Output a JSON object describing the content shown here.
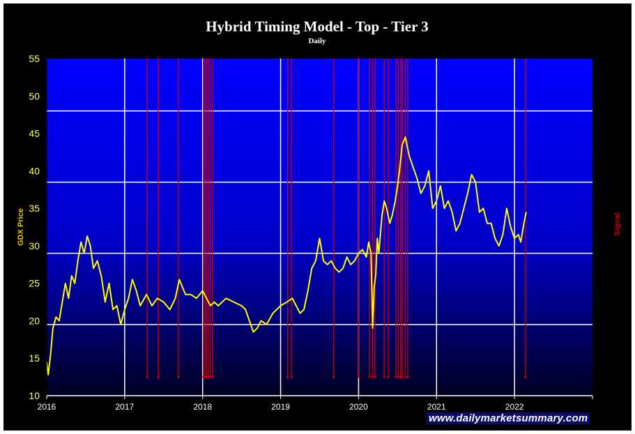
{
  "chart_data": {
    "type": "line",
    "title": "Hybrid Timing Model - Top - Tier 3",
    "subtitle": "Daily",
    "ylabel": "GDX Price",
    "y2label": "Signal",
    "ylim": [
      10,
      55
    ],
    "yticks": [
      "55",
      "50",
      "45",
      "40",
      "35",
      "30",
      "25",
      "20",
      "15",
      "10"
    ],
    "xlim": [
      2016.0,
      2023.0
    ],
    "xticks": [
      "2016",
      "2017",
      "2018",
      "2019",
      "2020",
      "2021",
      "2022"
    ],
    "grid": true,
    "colors": {
      "plot_top": "#0000ff",
      "plot_bottom": "#000022",
      "price_line": "#ffff00",
      "signal_line": "#cc0000",
      "grid": "#ffffff",
      "title": "#ffffff",
      "ylabel": "#e8c800",
      "y2label": "#cc0000"
    },
    "price_series": {
      "x": [
        2016.0,
        2016.02,
        2016.05,
        2016.08,
        2016.12,
        2016.16,
        2016.2,
        2016.24,
        2016.28,
        2016.32,
        2016.36,
        2016.4,
        2016.44,
        2016.48,
        2016.52,
        2016.56,
        2016.6,
        2016.65,
        2016.7,
        2016.75,
        2016.8,
        2016.85,
        2016.9,
        2016.95,
        2017.0,
        2017.05,
        2017.1,
        2017.15,
        2017.2,
        2017.28,
        2017.35,
        2017.42,
        2017.5,
        2017.58,
        2017.65,
        2017.7,
        2017.78,
        2017.85,
        2017.92,
        2018.0,
        2018.05,
        2018.1,
        2018.15,
        2018.2,
        2018.3,
        2018.4,
        2018.5,
        2018.55,
        2018.6,
        2018.65,
        2018.7,
        2018.75,
        2018.82,
        2018.9,
        2019.0,
        2019.08,
        2019.15,
        2019.25,
        2019.3,
        2019.35,
        2019.4,
        2019.45,
        2019.5,
        2019.55,
        2019.6,
        2019.65,
        2019.7,
        2019.75,
        2019.8,
        2019.85,
        2019.9,
        2019.95,
        2020.0,
        2020.05,
        2020.1,
        2020.13,
        2020.16,
        2020.18,
        2020.2,
        2020.22,
        2020.24,
        2020.26,
        2020.3,
        2020.33,
        2020.36,
        2020.4,
        2020.43,
        2020.47,
        2020.5,
        2020.53,
        2020.56,
        2020.6,
        2020.65,
        2020.7,
        2020.75,
        2020.8,
        2020.85,
        2020.9,
        2020.95,
        2021.0,
        2021.05,
        2021.1,
        2021.15,
        2021.2,
        2021.25,
        2021.3,
        2021.35,
        2021.4,
        2021.45,
        2021.5,
        2021.55,
        2021.6,
        2021.65,
        2021.7,
        2021.75,
        2021.8,
        2021.85,
        2021.9,
        2021.95,
        2022.0,
        2022.05,
        2022.08,
        2022.12,
        2022.15
      ],
      "values": [
        14.5,
        12.8,
        15.5,
        19.0,
        20.5,
        20.0,
        22.5,
        25.0,
        23.0,
        26.0,
        25.0,
        28.0,
        30.5,
        29.0,
        31.3,
        30.0,
        27.0,
        28.0,
        26.0,
        22.5,
        25.0,
        21.5,
        22.0,
        19.5,
        21.5,
        23.0,
        25.5,
        24.0,
        22.0,
        23.5,
        22.0,
        23.0,
        22.5,
        21.5,
        23.0,
        25.5,
        23.5,
        23.5,
        23.0,
        24.0,
        23.0,
        22.0,
        22.5,
        22.0,
        23.0,
        22.5,
        22.0,
        21.5,
        20.0,
        18.5,
        19.0,
        20.0,
        19.5,
        21.0,
        22.0,
        22.5,
        23.0,
        21.0,
        21.5,
        24.0,
        27.0,
        28.0,
        31.0,
        28.0,
        27.5,
        28.0,
        27.0,
        26.5,
        27.0,
        28.5,
        27.5,
        28.0,
        29.0,
        29.5,
        28.5,
        30.5,
        29.0,
        19.0,
        24.5,
        26.0,
        31.0,
        29.0,
        34.0,
        36.0,
        35.0,
        33.0,
        34.0,
        36.0,
        38.0,
        40.5,
        43.5,
        44.5,
        42.0,
        40.5,
        39.0,
        37.0,
        38.0,
        40.0,
        35.0,
        36.0,
        38.0,
        35.0,
        36.0,
        34.5,
        32.0,
        33.0,
        35.0,
        37.0,
        39.5,
        38.5,
        34.5,
        35.0,
        33.0,
        33.0,
        31.0,
        30.0,
        31.5,
        35.0,
        32.5,
        31.0,
        31.5,
        30.5,
        33.0,
        34.5
      ]
    },
    "signals": [
      2017.29,
      2017.43,
      2017.69,
      2018.01,
      2018.03,
      2018.05,
      2018.07,
      2018.1,
      2018.13,
      2019.09,
      2019.14,
      2019.68,
      2020.0,
      2020.14,
      2020.18,
      2020.21,
      2020.33,
      2020.38,
      2020.48,
      2020.51,
      2020.54,
      2020.56,
      2020.6,
      2020.63,
      2022.14
    ]
  },
  "watermark": "www.dailymarketsummary.com"
}
